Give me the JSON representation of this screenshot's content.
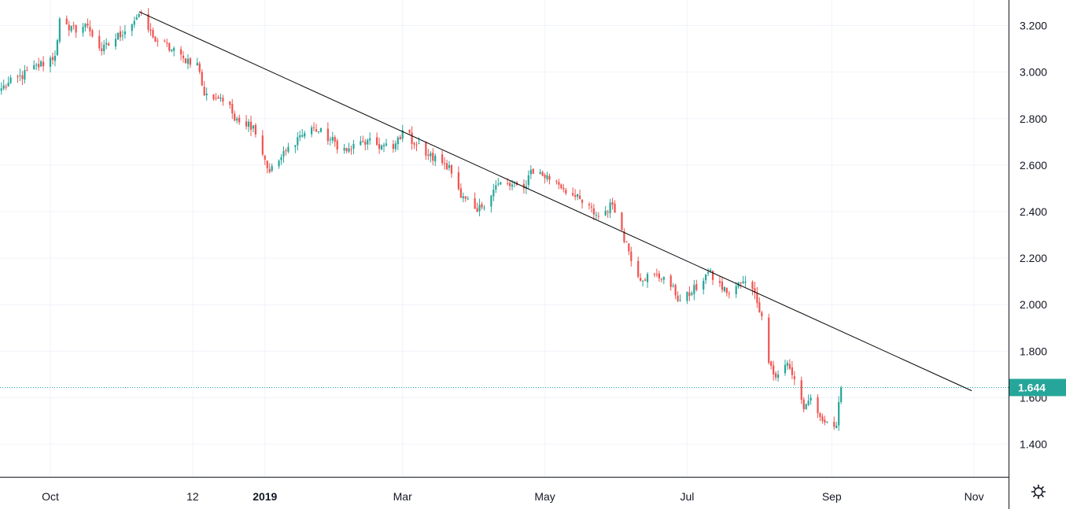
{
  "colors": {
    "up": "#26a69a",
    "down": "#ef5350",
    "grid": "#f0f3fa",
    "axis": "#131722",
    "text": "#131722",
    "trendline": "#000000",
    "last_price_bg": "#26a69a",
    "last_price_line": "#26a69a"
  },
  "icons": {
    "settings": "gear-icon"
  },
  "chart_data": {
    "type": "candlestick",
    "title": "",
    "xlabel": "",
    "ylabel": "",
    "ylim": [
      1.26,
      3.31
    ],
    "x_tick_labels": [
      "Oct",
      "12",
      "2019",
      "Mar",
      "May",
      "Jul",
      "Sep",
      "Nov"
    ],
    "x_tick_bold": [
      false,
      false,
      true,
      false,
      false,
      false,
      false,
      false
    ],
    "x_tick_dates": [
      "2018-10-01",
      "2018-12-01",
      "2019-01-01",
      "2019-03-01",
      "2019-05-01",
      "2019-07-01",
      "2019-09-01",
      "2019-11-01"
    ],
    "y_ticks": [
      1.4,
      1.6,
      1.8,
      2.0,
      2.2,
      2.4,
      2.6,
      2.8,
      3.0,
      3.2
    ],
    "y_tick_labels": [
      "1.400",
      "1.600",
      "1.800",
      "2.000",
      "2.200",
      "2.400",
      "2.600",
      "2.800",
      "3.000",
      "3.200"
    ],
    "last_price": 1.644,
    "last_price_label": "1.644",
    "grid": true,
    "trendline": {
      "from": {
        "date": "2018-11-08",
        "value": 3.26
      },
      "to": {
        "date": "2019-10-31",
        "value": 1.63
      }
    },
    "series": [
      {
        "date_anchors": [
          "2018-09-10",
          "2018-10-03",
          "2018-10-05",
          "2018-10-09",
          "2018-10-17",
          "2018-10-23",
          "2018-11-06",
          "2018-11-08",
          "2018-11-14",
          "2018-11-27",
          "2018-12-03",
          "2018-12-06",
          "2018-12-13",
          "2018-12-20",
          "2018-12-27",
          "2019-01-03",
          "2019-01-15",
          "2019-01-22",
          "2019-02-05",
          "2019-02-12",
          "2019-02-25",
          "2019-03-01",
          "2019-03-12",
          "2019-03-21",
          "2019-03-26",
          "2019-04-02",
          "2019-04-11",
          "2019-04-22",
          "2019-04-25",
          "2019-05-06",
          "2019-05-13",
          "2019-05-24",
          "2019-05-30",
          "2019-06-03",
          "2019-06-10",
          "2019-06-21",
          "2019-06-28",
          "2019-07-03",
          "2019-07-10",
          "2019-07-18",
          "2019-07-25",
          "2019-07-30",
          "2019-08-02",
          "2019-08-05",
          "2019-08-07",
          "2019-08-13",
          "2019-08-16",
          "2019-08-20",
          "2019-08-23",
          "2019-08-28",
          "2019-09-03",
          "2019-09-05"
        ],
        "close_anchors": [
          2.93,
          3.07,
          3.23,
          3.18,
          3.2,
          3.09,
          3.22,
          3.25,
          3.15,
          3.06,
          3.04,
          2.9,
          2.89,
          2.8,
          2.77,
          2.57,
          2.72,
          2.76,
          2.66,
          2.7,
          2.67,
          2.75,
          2.64,
          2.6,
          2.46,
          2.4,
          2.52,
          2.5,
          2.58,
          2.53,
          2.47,
          2.38,
          2.43,
          2.32,
          2.12,
          2.12,
          2.02,
          2.05,
          2.14,
          2.05,
          2.1,
          2.05,
          1.95,
          1.75,
          1.7,
          1.75,
          1.68,
          1.55,
          1.6,
          1.5,
          1.48,
          1.644
        ]
      }
    ]
  }
}
